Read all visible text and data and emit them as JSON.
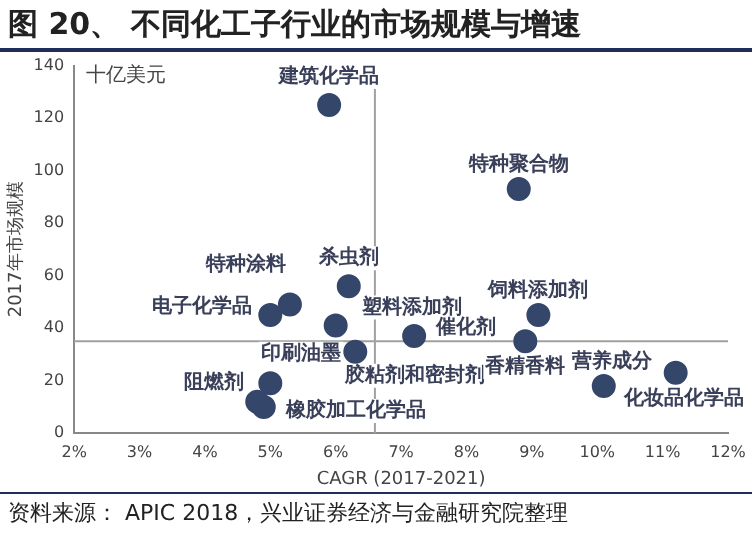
{
  "chart_data": {
    "type": "scatter",
    "title": "图 20、 不同化工子行业的市场规模与增速",
    "xlabel": "CAGR (2017-2021)",
    "ylabel": "2017年市场规模",
    "x": [
      5.9,
      6.2,
      8.8,
      5.3,
      5.0,
      6.0,
      6.3,
      4.8,
      5.0,
      4.9,
      7.2,
      9.1,
      8.9,
      10.1,
      11.2
    ],
    "values": [
      125,
      56,
      93,
      49,
      45,
      41,
      31,
      12,
      19,
      10,
      37,
      45,
      35,
      18,
      23
    ],
    "color": "#34466a",
    "marker": "circle",
    "xlim": [
      2,
      12
    ],
    "xticks": [
      {
        "value": 2,
        "label": "2%"
      },
      {
        "value": 3,
        "label": "3%"
      },
      {
        "value": 4,
        "label": "4%"
      },
      {
        "value": 5,
        "label": "5%"
      },
      {
        "value": 6,
        "label": "6%"
      },
      {
        "value": 7,
        "label": "7%"
      },
      {
        "value": 8,
        "label": "8%"
      },
      {
        "value": 9,
        "label": "9%"
      },
      {
        "value": 10,
        "label": "10%"
      },
      {
        "value": 11,
        "label": "11%"
      },
      {
        "value": 12,
        "label": "12%"
      }
    ],
    "ylim": [
      0,
      140
    ],
    "yticks": [
      0,
      20,
      40,
      60,
      80,
      100,
      120,
      140
    ],
    "grid": false,
    "legend": false,
    "ref_lines": [
      {
        "axis": "x",
        "value": 6.6,
        "color": "#a0a0a0"
      },
      {
        "axis": "y",
        "value": 35,
        "color": "#a0a0a0"
      }
    ],
    "annotations": [
      "十亿美元",
      "资料来源： APIC 2018，兴业证券经济与金融研究院整理",
      {
        "text": "建筑化学品",
        "x": 5.9,
        "y": 125
      },
      {
        "text": "杀虫剂",
        "x": 6.2,
        "y": 56
      },
      {
        "text": "特种聚合物",
        "x": 8.8,
        "y": 93
      },
      {
        "text": "特种涂料",
        "x": 5.3,
        "y": 49
      },
      {
        "text": "电子化学品",
        "x": 5.0,
        "y": 45
      },
      {
        "text": "塑料添加剂",
        "x": 6.0,
        "y": 41
      },
      {
        "text": "胶粘剂和密封剂",
        "x": 6.3,
        "y": 31
      },
      {
        "text": "印刷油墨",
        "x": 4.8,
        "y": 12
      },
      {
        "text": "阻燃剂",
        "x": 5.0,
        "y": 19
      },
      {
        "text": "橡胶加工化学品",
        "x": 4.9,
        "y": 10
      },
      {
        "text": "催化剂",
        "x": 7.2,
        "y": 37
      },
      {
        "text": "饲料添加剂",
        "x": 9.1,
        "y": 45
      },
      {
        "text": "香精香料",
        "x": 8.9,
        "y": 35
      },
      {
        "text": "营养成分",
        "x": 10.1,
        "y": 18
      },
      {
        "text": "化妆品化学品",
        "x": 11.2,
        "y": 23
      }
    ]
  }
}
